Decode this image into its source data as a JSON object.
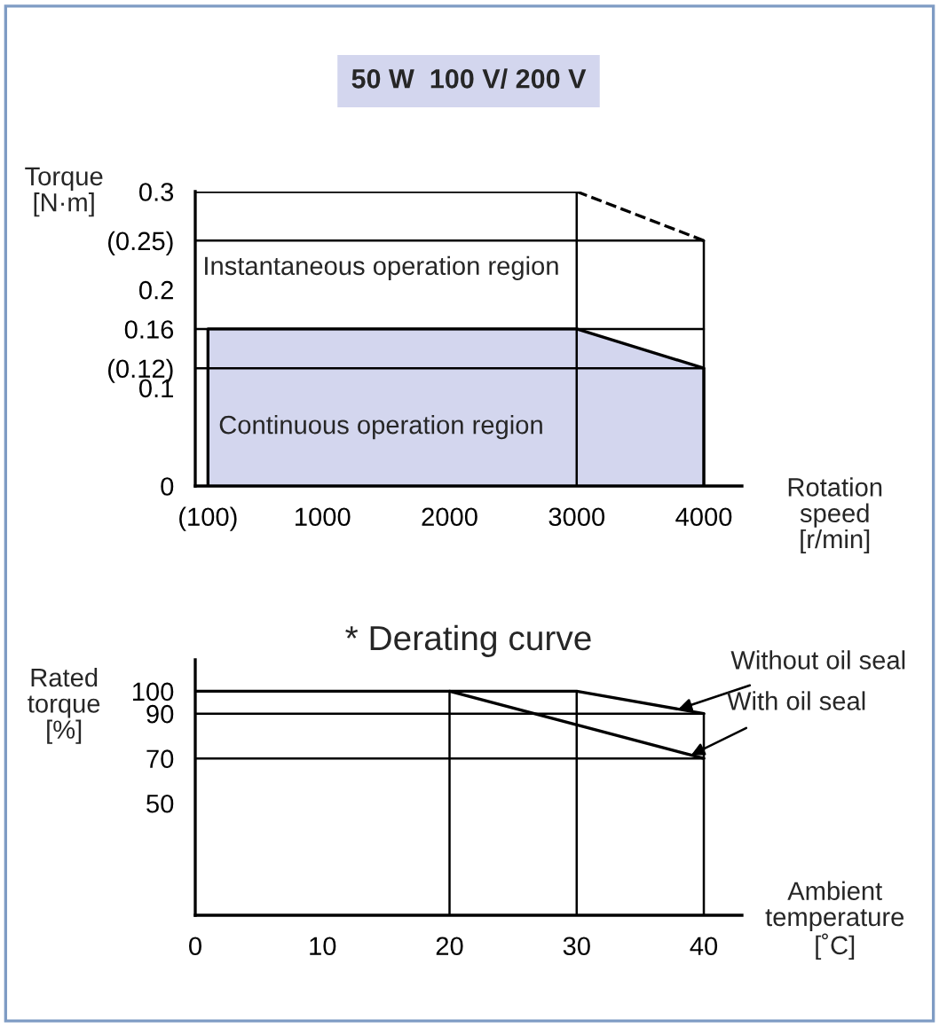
{
  "chart_data": [
    {
      "type": "line",
      "title": "50 W  100 V/ 200 V",
      "xlabel": "Rotation\nspeed\n[r/min]",
      "ylabel": "Torque\n[N·m]",
      "xlim": [
        0,
        4300
      ],
      "ylim": [
        0,
        0.3
      ],
      "xticks": [
        {
          "value": 100,
          "label": "(100)"
        },
        1000,
        2000,
        3000,
        4000
      ],
      "yticks": [
        0,
        0.1,
        {
          "value": 0.12,
          "label": "(0.12)"
        },
        0.16,
        0.2,
        {
          "value": 0.25,
          "label": "(0.25)"
        },
        0.3
      ],
      "series": [
        {
          "x": [
            0,
            3000
          ],
          "values": [
            0.3,
            0.3
          ],
          "color": "#000000",
          "line_style": "solid"
        },
        {
          "x": [
            3000,
            4000
          ],
          "values": [
            0.3,
            0.25
          ],
          "color": "#000000",
          "line_style": "dashed"
        },
        {
          "type": "area",
          "x": [
            100,
            3000,
            4000
          ],
          "values": [
            0.16,
            0.16,
            0.12
          ],
          "color": "#d3d6ee"
        }
      ],
      "ref_lines": [
        {
          "axis": "y",
          "value": 0.25
        },
        {
          "axis": "y",
          "value": 0.16
        },
        {
          "axis": "y",
          "value": 0.12
        },
        {
          "axis": "x",
          "value": 3000
        },
        {
          "axis": "x",
          "value": 4000
        }
      ],
      "annotations": [
        "Instantaneous operation region",
        "Continuous operation region"
      ]
    },
    {
      "type": "line",
      "title": "* Derating curve",
      "xlabel": "Ambient\ntemperature\n[˚C]",
      "ylabel": "Rated\ntorque\n[%]",
      "xlim": [
        0,
        43
      ],
      "ylim": [
        0,
        114
      ],
      "xticks": [
        0,
        10,
        20,
        30,
        40
      ],
      "yticks": [
        50,
        70,
        90,
        100
      ],
      "series": [
        {
          "name": "Without oil seal",
          "x": [
            0,
            30,
            40
          ],
          "values": [
            100,
            100,
            90
          ],
          "color": "#000000",
          "line_style": "solid"
        },
        {
          "name": "With oil seal",
          "x": [
            20,
            40
          ],
          "values": [
            100,
            70
          ],
          "color": "#000000",
          "line_style": "solid"
        }
      ],
      "ref_lines": [
        {
          "axis": "y",
          "value": 90
        },
        {
          "axis": "y",
          "value": 70
        },
        {
          "axis": "x",
          "value": 20
        },
        {
          "axis": "x",
          "value": 30
        },
        {
          "axis": "x",
          "value": 40
        }
      ]
    }
  ]
}
